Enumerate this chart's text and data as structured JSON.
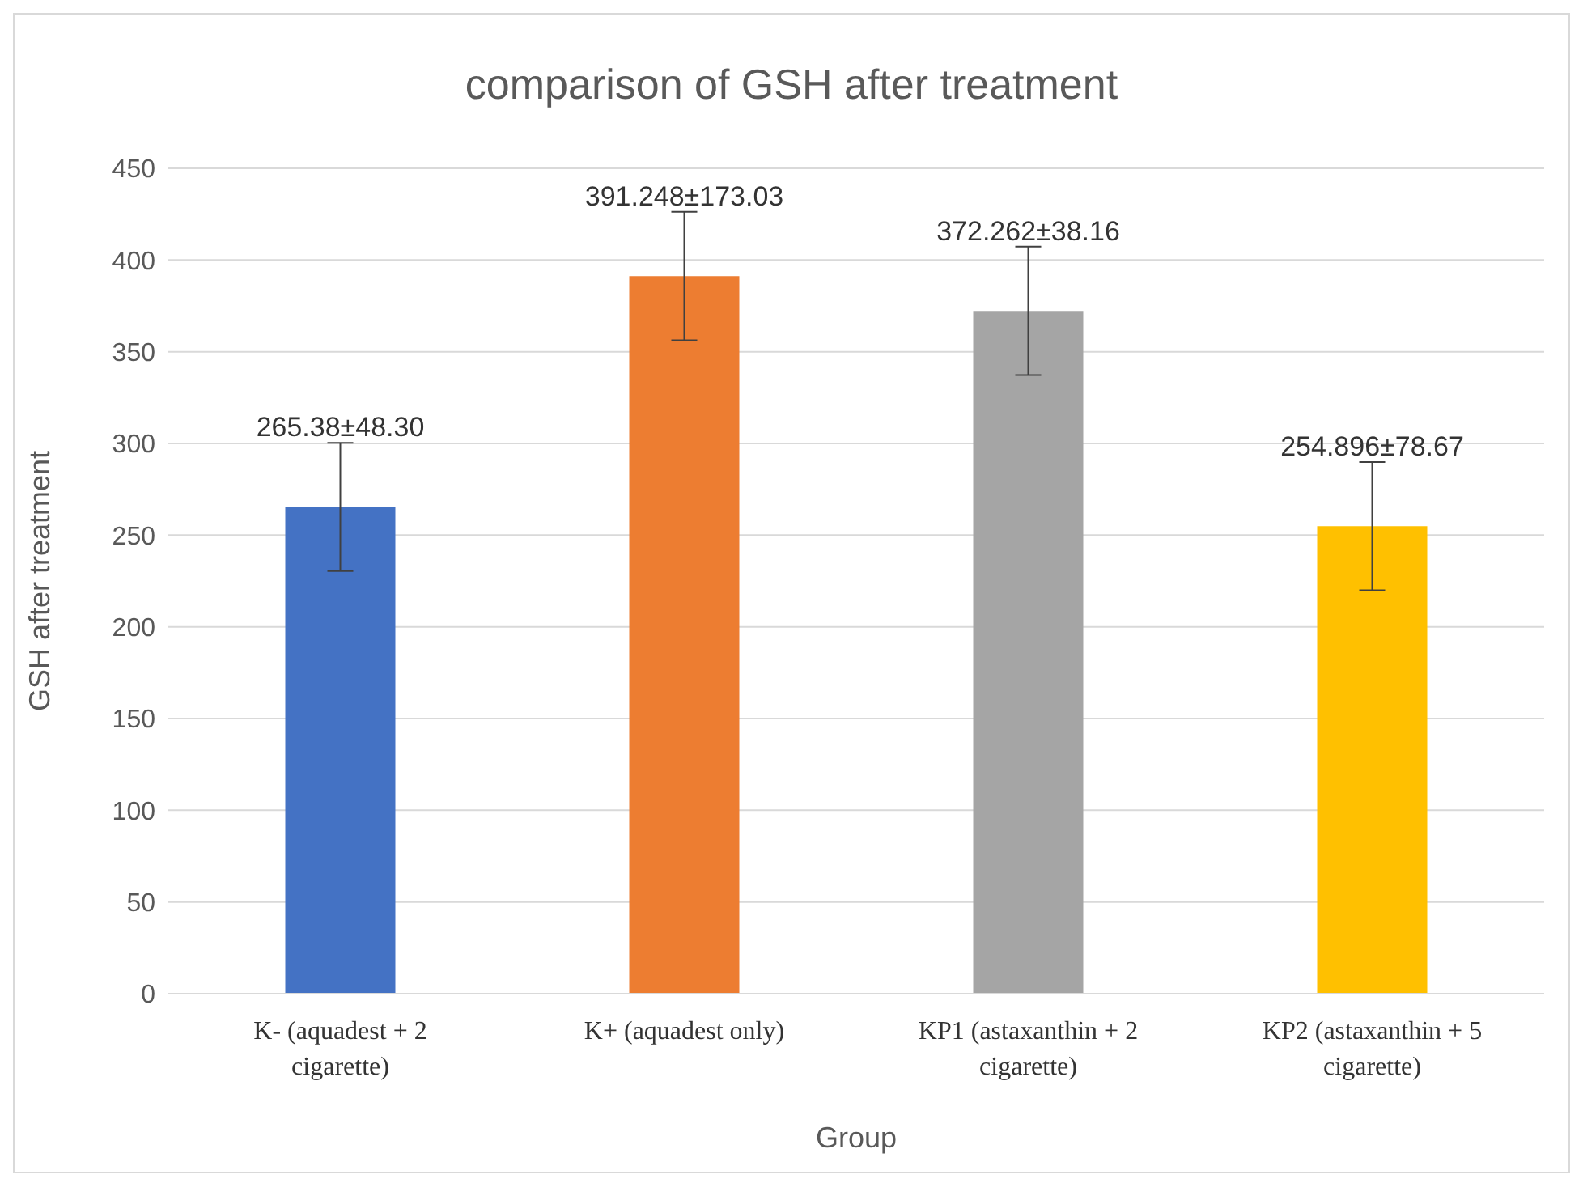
{
  "chart_data": {
    "type": "bar",
    "title": "comparison of GSH after treatment",
    "xlabel": "Group",
    "ylabel": "GSH after treatment",
    "categories": [
      "K- (aquadest + 2 cigarette)",
      "K+ (aquadest only)",
      "KP1 (astaxanthin + 2 cigarette)",
      "KP2 (astaxanthin + 5 cigarette)"
    ],
    "values": [
      265.38,
      391.248,
      372.262,
      254.896
    ],
    "colors": [
      "#4472c4",
      "#ed7d31",
      "#a5a5a5",
      "#ffc000"
    ],
    "errors": [
      35,
      35,
      35,
      35
    ],
    "value_labels": [
      "265.38±48.30",
      "391.248±173.03",
      "372.262±38.16",
      "254.896±78.67"
    ],
    "ylim": [
      0,
      450
    ],
    "yticks": [
      0,
      50,
      100,
      150,
      200,
      250,
      300,
      350,
      400,
      450
    ],
    "grid": "y",
    "legend": false
  }
}
